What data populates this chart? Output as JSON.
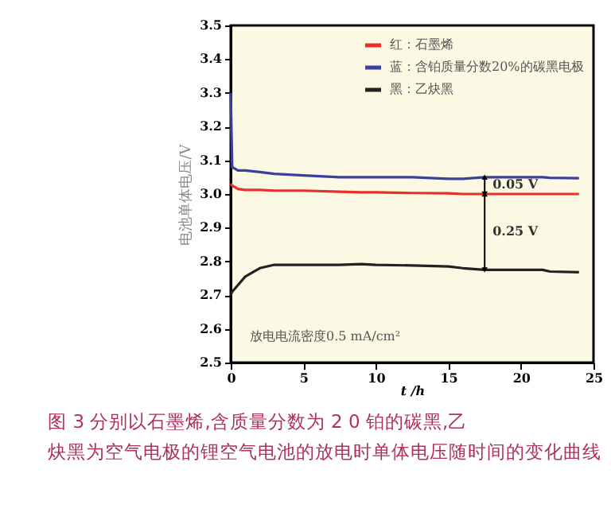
{
  "chart_data": {
    "type": "line",
    "title": "图 3  分别以石墨烯,含质量分数为 2 0 铂的碳黑,乙炔黑为空气电极的锂空气电池的放电时单体电压随时间的变化曲线",
    "xlabel": "t /h",
    "ylabel": "电池单体电压/V",
    "x": [
      0,
      0.1,
      0.5,
      1,
      2,
      3,
      5,
      7.5,
      9,
      10,
      12.5,
      15,
      16,
      17.5,
      20,
      21.5,
      22,
      24
    ],
    "series": [
      {
        "name": "红：石墨烯",
        "color": "#e8302a",
        "values": [
          3.03,
          3.025,
          3.015,
          3.012,
          3.012,
          3.01,
          3.01,
          3.007,
          3.005,
          3.005,
          3.003,
          3.002,
          3.0,
          3.0,
          3.0,
          3.0,
          3.0,
          3.0
        ]
      },
      {
        "name": "蓝：含铂质量分数20%的碳黑电极",
        "color": "#3a3fa0",
        "values": [
          3.3,
          3.08,
          3.07,
          3.07,
          3.065,
          3.06,
          3.055,
          3.05,
          3.05,
          3.05,
          3.05,
          3.045,
          3.045,
          3.05,
          3.05,
          3.05,
          3.048,
          3.047
        ]
      },
      {
        "name": "黑：乙炔黑",
        "color": "#222222",
        "values": [
          2.7,
          2.71,
          2.73,
          2.755,
          2.78,
          2.79,
          2.79,
          2.79,
          2.792,
          2.79,
          2.788,
          2.785,
          2.78,
          2.775,
          2.775,
          2.775,
          2.77,
          2.768
        ]
      }
    ],
    "annotations": [
      {
        "text": "0.05 V",
        "x": 17.5,
        "y": 3.025
      },
      "0.25 V",
      "放电电流密度0.5 mA/cm²"
    ],
    "xlim": [
      0,
      25
    ],
    "xticks": [
      0,
      5,
      10,
      15,
      20,
      25
    ],
    "ylim": [
      2.5,
      3.5
    ],
    "yticks": [
      2.5,
      2.6,
      2.7,
      2.8,
      2.9,
      {
        "value": 3,
        "label": "3.0"
      },
      3.1,
      3.2,
      3.3,
      3.4,
      3.5
    ],
    "legend": "top right",
    "grid": false
  }
}
